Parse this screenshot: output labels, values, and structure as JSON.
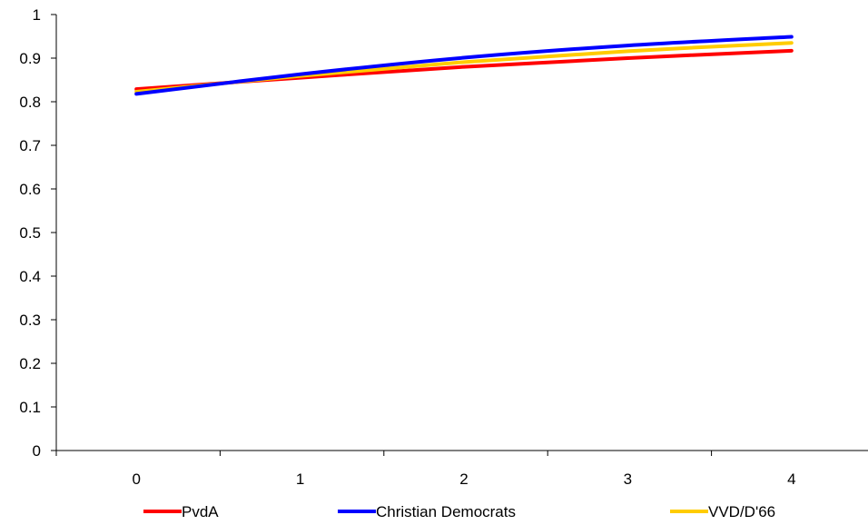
{
  "chart_data": {
    "type": "line",
    "title": "",
    "xlabel": "",
    "ylabel": "",
    "x": [
      0,
      1,
      2,
      3,
      4
    ],
    "ylim": [
      0,
      1
    ],
    "yticks": [
      "0",
      "0.1",
      "0.2",
      "0.3",
      "0.4",
      "0.5",
      "0.6",
      "0.7",
      "0.8",
      "0.9",
      "1"
    ],
    "xticks": [
      "0",
      "1",
      "2",
      "3",
      "4"
    ],
    "grid": false,
    "legend_position": "bottom",
    "series": [
      {
        "name": "PvdA",
        "color": "#FF0000",
        "values": [
          0.829,
          0.855,
          0.88,
          0.9,
          0.917
        ]
      },
      {
        "name": "Christian Democrats",
        "color": "#0000FF",
        "values": [
          0.818,
          0.863,
          0.901,
          0.929,
          0.949
        ]
      },
      {
        "name": "VVD/D'66",
        "color": "#FFCC00",
        "values": [
          0.823,
          0.859,
          0.891,
          0.916,
          0.935
        ]
      }
    ]
  }
}
